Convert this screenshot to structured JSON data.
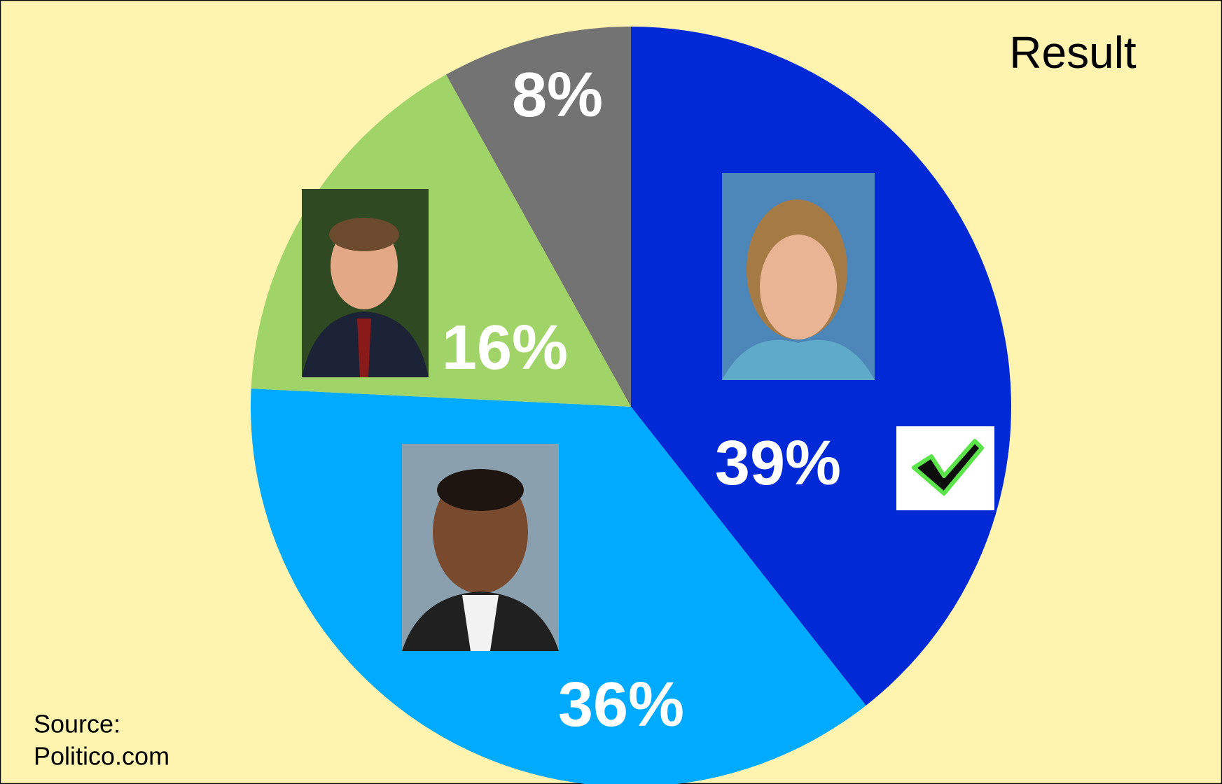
{
  "chart_data": {
    "type": "pie",
    "title": "Result",
    "values": [
      39,
      36,
      16,
      8
    ],
    "value_labels": [
      "39%",
      "36%",
      "16%",
      "8%"
    ],
    "colors": [
      "#0229d6",
      "#00aaff",
      "#a0d468",
      "#737373"
    ],
    "source": [
      "Source:",
      "Politico.com"
    ]
  }
}
